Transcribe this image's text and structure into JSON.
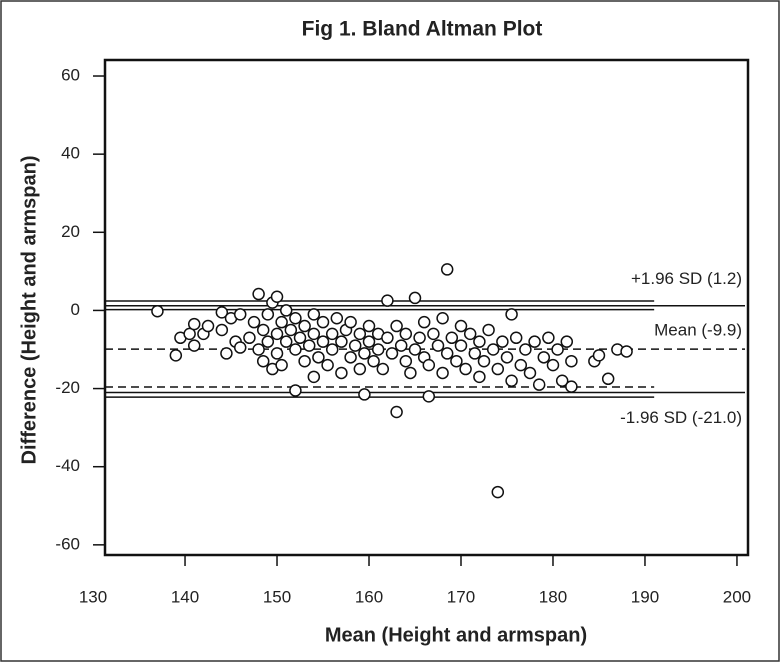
{
  "chart_data": {
    "type": "scatter",
    "title": "Fig 1. Bland Altman Plot",
    "x_label": "Mean (Height and armspan)",
    "y_label": "Difference (Height and armspan)",
    "xlim": [
      131.3,
      201.2
    ],
    "ylim": [
      -62.6,
      64.1
    ],
    "xticks": [
      130,
      140,
      150,
      160,
      170,
      180,
      190,
      200
    ],
    "yticks": [
      60,
      40,
      20,
      0,
      -20,
      -40,
      -60
    ],
    "color": "#ffffff",
    "x": [
      137,
      139,
      139.5,
      140.5,
      141,
      141,
      142,
      142.5,
      144,
      144,
      144.5,
      145,
      145.5,
      146,
      146,
      147,
      147.5,
      148,
      148,
      148.5,
      148.5,
      149,
      149,
      149.5,
      149.5,
      150,
      150,
      150,
      150.5,
      150.5,
      151,
      151,
      151.5,
      152,
      152,
      152,
      152.5,
      153,
      153,
      153.5,
      154,
      154,
      154,
      154.5,
      155,
      155,
      155.5,
      156,
      156,
      156.5,
      157,
      157,
      157.5,
      158,
      158,
      158.5,
      159,
      159,
      159.5,
      159.5,
      160,
      160,
      160.5,
      161,
      161,
      161.5,
      162,
      162,
      162.5,
      163,
      163,
      163.5,
      164,
      164,
      164.5,
      165,
      165,
      165.5,
      166,
      166,
      166.5,
      166.5,
      167,
      167.5,
      168,
      168,
      168.5,
      168.5,
      169,
      169.5,
      170,
      170,
      170.5,
      171,
      171.5,
      172,
      172,
      172.5,
      173,
      173.5,
      174,
      174,
      174.5,
      175,
      175.5,
      175.5,
      176,
      176.5,
      177,
      177.5,
      178,
      178.5,
      179,
      179.5,
      180,
      180.5,
      181,
      181.5,
      182,
      182,
      184.5,
      185,
      186,
      187,
      188
    ],
    "values": [
      -0.2,
      -11.5,
      -7,
      -6,
      -3.5,
      -9,
      -6,
      -4,
      -5,
      -0.5,
      -11,
      -2,
      -8,
      -9.5,
      -1,
      -7,
      -3,
      4.2,
      -10,
      -5,
      -13,
      -1,
      -8,
      2,
      -15,
      3.5,
      -6,
      -11,
      -3,
      -14,
      -8,
      0,
      -5,
      -20.5,
      -10,
      -2,
      -7,
      -13,
      -4,
      -9,
      -17,
      -1,
      -6,
      -12,
      -3,
      -8,
      -14,
      -6,
      -10,
      -2,
      -16,
      -8,
      -5,
      -12,
      -3,
      -9,
      -15,
      -6,
      -21.5,
      -11,
      -4,
      -8,
      -13,
      -6,
      -10,
      -15,
      2.5,
      -7,
      -11,
      -26,
      -4,
      -9,
      -13,
      -6,
      -16,
      3.2,
      -10,
      -7,
      -3,
      -12,
      -22,
      -14,
      -6,
      -9,
      -2,
      -16,
      10.5,
      -11,
      -7,
      -13,
      -4,
      -9,
      -15,
      -6,
      -11,
      -17,
      -8,
      -13,
      -5,
      -10,
      -46.5,
      -15,
      -8,
      -12,
      -1,
      -18,
      -7,
      -14,
      -10,
      -16,
      -8,
      -19,
      -12,
      -7,
      -14,
      -10,
      -18,
      -8,
      -13,
      -19.5,
      -13,
      -11.5,
      -17.5,
      -10,
      -10.5
    ],
    "ref_lines": [
      {
        "label": "+1.96 SD (1.2)",
        "value": 1.2,
        "style": "solid"
      },
      {
        "label": "Mean (-9.9)",
        "value": -9.9,
        "style": "dashed"
      },
      {
        "label": "-1.96 SD (-21.0)",
        "value": -21.0,
        "style": "solid"
      }
    ],
    "ci_x_end": 191,
    "ci_lines": [
      {
        "value": 2.4,
        "style": "solid"
      },
      {
        "value": 0.2,
        "style": "solid"
      },
      {
        "value": -19.6,
        "style": "dashed"
      },
      {
        "value": -22.2,
        "style": "solid"
      }
    ]
  }
}
